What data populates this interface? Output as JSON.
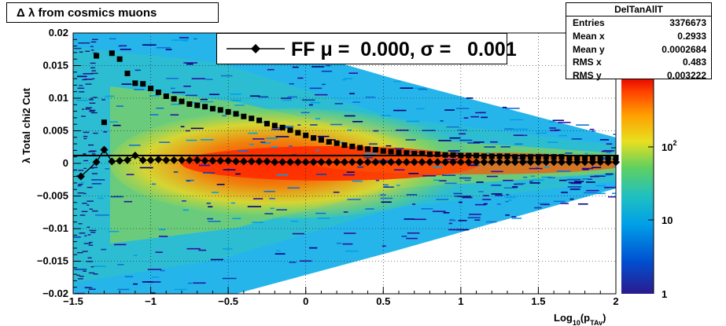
{
  "title": "Δ λ from cosmics muons",
  "stats": {
    "name": "DelTanAllT",
    "rows": [
      {
        "label": "Entries",
        "value": "3376673"
      },
      {
        "label": "Mean x",
        "value": "0.2933"
      },
      {
        "label": "Mean y",
        "value": "0.0002684"
      },
      {
        "label": "RMS x",
        "value": "0.483"
      },
      {
        "label": "RMS y",
        "value": "0.003222"
      }
    ]
  },
  "legend": {
    "text": "FF μ =  0.000, σ =   0.001"
  },
  "chart_data": {
    "type": "heatmap",
    "xlabel": "Log10(pTAv)",
    "ylabel": "λ  Total chi2 Cut",
    "xlim": [
      -1.5,
      2.0
    ],
    "ylim": [
      -0.02,
      0.02
    ],
    "x_ticks": [
      "−1.5",
      "−1",
      "−0.5",
      "0",
      "0.5",
      "1",
      "1.5",
      "2"
    ],
    "y_ticks": [
      "−0.02",
      "−0.015",
      "−0.01",
      "−0.005",
      "0",
      "0.005",
      "0.01",
      "0.015",
      "0.02"
    ],
    "z_scale": "log",
    "z_ticks": [
      "1",
      "10",
      "10^2"
    ],
    "grid": true,
    "series": [
      {
        "name": "sigma",
        "x": [
          -1.35,
          -1.3,
          -1.25,
          -1.2,
          -1.15,
          -1.1,
          -1.05,
          -1.0,
          -0.95,
          -0.9,
          -0.85,
          -0.8,
          -0.75,
          -0.7,
          -0.65,
          -0.6,
          -0.55,
          -0.5,
          -0.45,
          -0.4,
          -0.35,
          -0.3,
          -0.25,
          -0.2,
          -0.15,
          -0.1,
          -0.05,
          0.0,
          0.05,
          0.1,
          0.15,
          0.2,
          0.25,
          0.3,
          0.35,
          0.4,
          0.45,
          0.5,
          0.55,
          0.6,
          0.65,
          0.7,
          0.75,
          0.8,
          0.85,
          0.9,
          0.95,
          1.0,
          1.05,
          1.1,
          1.15,
          1.2,
          1.25,
          1.3,
          1.35,
          1.4,
          1.45,
          1.5,
          1.55,
          1.6,
          1.65,
          1.7,
          1.75,
          1.8,
          1.85,
          1.9,
          1.95,
          2.0
        ],
        "y": [
          0.0165,
          0.0063,
          0.0169,
          0.016,
          0.0138,
          0.0123,
          0.0122,
          0.0115,
          0.0109,
          0.0103,
          0.0099,
          0.0095,
          0.0091,
          0.0089,
          0.0087,
          0.0084,
          0.0082,
          0.0079,
          0.0076,
          0.0072,
          0.0069,
          0.0066,
          0.0061,
          0.0058,
          0.0055,
          0.0051,
          0.0047,
          0.0043,
          0.0039,
          0.0036,
          0.0033,
          0.0031,
          0.0028,
          0.0026,
          0.0024,
          0.0022,
          0.0021,
          0.0019,
          0.0018,
          0.0017,
          0.0016,
          0.0015,
          0.0015,
          0.0014,
          0.0014,
          0.0013,
          0.0013,
          0.0012,
          0.0012,
          0.0012,
          0.0011,
          0.0011,
          0.0011,
          0.0011,
          0.001,
          0.001,
          0.001,
          0.001,
          0.001,
          0.001,
          0.001,
          0.0009,
          0.0009,
          0.0009,
          0.0009,
          0.0009,
          0.0009,
          0.0009
        ]
      },
      {
        "name": "mean",
        "x": [
          -1.45,
          -1.35,
          -1.3,
          -1.25,
          -1.2,
          -1.15,
          -1.1,
          -1.05,
          -1.0,
          -0.95,
          -0.9,
          -0.85,
          -0.8,
          -0.75,
          -0.7,
          -0.65,
          -0.6,
          -0.55,
          -0.5,
          -0.45,
          -0.4,
          -0.35,
          -0.3,
          -0.25,
          -0.2,
          -0.15,
          -0.1,
          -0.05,
          0.0,
          0.05,
          0.1,
          0.15,
          0.2,
          0.25,
          0.3,
          0.35,
          0.4,
          0.45,
          0.5,
          0.55,
          0.6,
          0.65,
          0.7,
          0.75,
          0.8,
          0.85,
          0.9,
          0.95,
          1.0,
          1.05,
          1.1,
          1.15,
          1.2,
          1.25,
          1.3,
          1.35,
          1.4,
          1.45,
          1.5,
          1.55,
          1.6,
          1.65,
          1.7,
          1.75,
          1.8,
          1.85,
          1.9,
          1.95,
          2.0
        ],
        "y": [
          -0.002,
          0.0002,
          0.0021,
          0.0003,
          0.0004,
          0.0005,
          0.0012,
          0.0005,
          0.0005,
          0.0006,
          0.0005,
          0.0005,
          0.0005,
          0.0005,
          0.0005,
          0.0004,
          0.0004,
          0.0004,
          0.0004,
          0.0003,
          0.0003,
          0.0003,
          0.0003,
          0.0003,
          0.0002,
          0.0002,
          0.0002,
          0.0002,
          0.0002,
          0.0002,
          0.0002,
          0.0002,
          0.0002,
          0.0002,
          0.0002,
          0.0002,
          0.0002,
          0.0002,
          0.0002,
          0.0002,
          0.0002,
          0.0002,
          0.0002,
          0.0002,
          0.0002,
          0.0002,
          0.0002,
          0.0002,
          0.0002,
          0.0002,
          0.0002,
          0.0002,
          0.0002,
          0.0002,
          0.0002,
          0.0002,
          0.0002,
          0.0002,
          0.0002,
          0.0002,
          0.0002,
          0.0002,
          0.0002,
          0.0002,
          0.0002,
          0.0002,
          0.0002,
          0.0002,
          0.0002
        ]
      }
    ]
  }
}
